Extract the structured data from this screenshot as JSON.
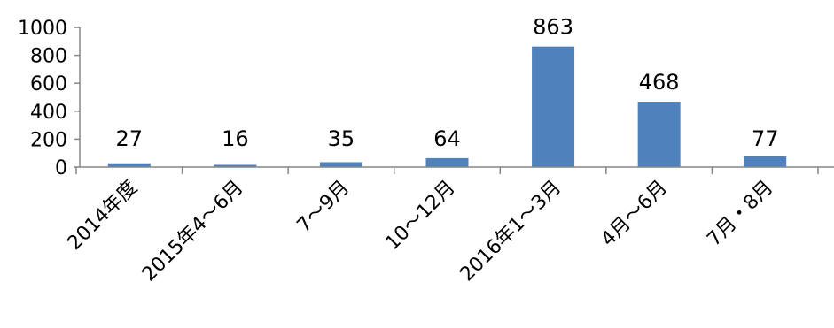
{
  "chart_data": {
    "type": "bar",
    "title": "",
    "xlabel": "",
    "ylabel": "",
    "categories": [
      "2014年度",
      "2015年4～6月",
      "7～9月",
      "10～12月",
      "2016年1～3月",
      "4月～6月",
      "7月・8月"
    ],
    "values": [
      27,
      16,
      35,
      64,
      863,
      468,
      77
    ],
    "data_labels": [
      "27",
      "16",
      "35",
      "64",
      "863",
      "468",
      "77"
    ],
    "ylim": [
      0,
      1000
    ],
    "yticks": [
      0,
      200,
      400,
      600,
      800,
      1000
    ],
    "ytick_labels": [
      "0",
      "200",
      "400",
      "600",
      "800",
      "1000"
    ],
    "bar_color": "#4F81BD",
    "grid": false,
    "legend": "none"
  }
}
